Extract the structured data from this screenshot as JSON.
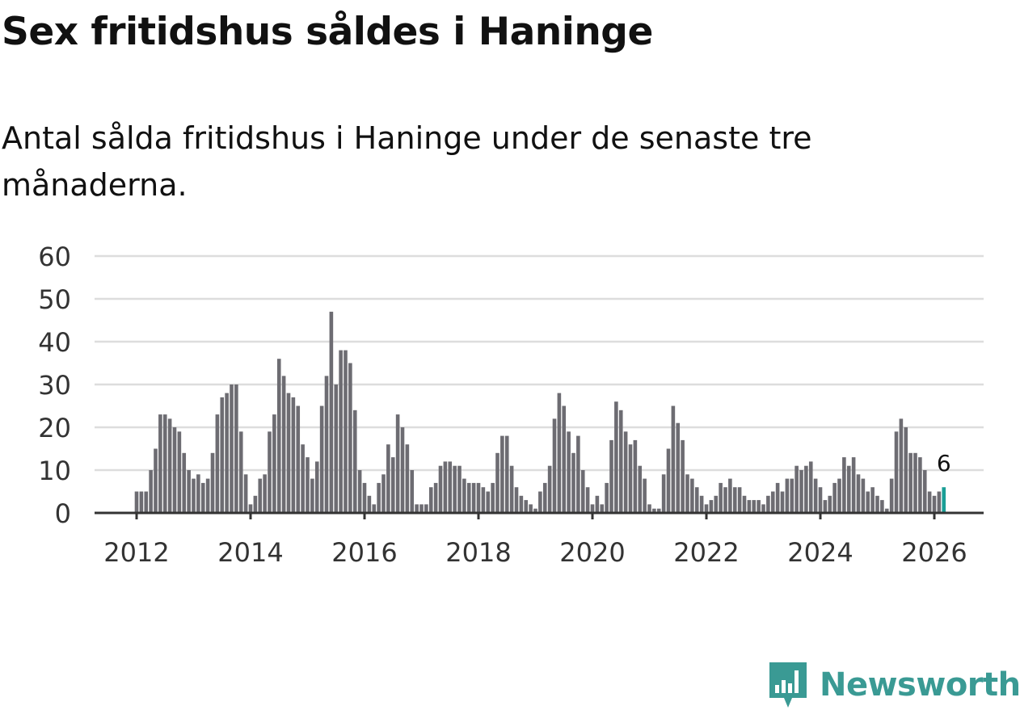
{
  "title": "Sex fritidshus såldes i Haninge",
  "subtitle": "Antal sålda fritidshus i Haninge under de senaste tre månaderna.",
  "brand": "Newsworthy",
  "colors": {
    "bar": "#6d6c72",
    "highlight": "#1a9e96",
    "grid": "#dddddd",
    "axis": "#333333",
    "brand": "#3a9a94"
  },
  "chart_data": {
    "type": "bar",
    "title": "Sex fritidshus såldes i Haninge",
    "xlabel": "",
    "ylabel": "",
    "ylim": [
      0,
      60
    ],
    "yticks": [
      0,
      10,
      20,
      30,
      40,
      50,
      60
    ],
    "xticks": [
      "2012",
      "2014",
      "2016",
      "2018",
      "2020",
      "2022",
      "2024",
      "2026"
    ],
    "start": "2012-01",
    "frequency": "monthly",
    "grid": true,
    "highlight_label": "6",
    "values": [
      5,
      5,
      5,
      10,
      15,
      23,
      23,
      22,
      20,
      19,
      14,
      10,
      8,
      9,
      7,
      8,
      14,
      23,
      27,
      28,
      30,
      30,
      19,
      9,
      2,
      4,
      8,
      9,
      19,
      23,
      36,
      32,
      28,
      27,
      25,
      16,
      13,
      8,
      12,
      25,
      32,
      47,
      30,
      38,
      38,
      35,
      24,
      10,
      7,
      4,
      2,
      7,
      9,
      16,
      13,
      23,
      20,
      16,
      10,
      2,
      2,
      2,
      6,
      7,
      11,
      12,
      12,
      11,
      11,
      8,
      7,
      7,
      7,
      6,
      5,
      7,
      14,
      18,
      18,
      11,
      6,
      4,
      3,
      2,
      1,
      5,
      7,
      11,
      22,
      28,
      25,
      19,
      14,
      18,
      10,
      6,
      2,
      4,
      2,
      7,
      17,
      26,
      24,
      19,
      16,
      17,
      11,
      8,
      2,
      1,
      1,
      9,
      15,
      25,
      21,
      17,
      9,
      8,
      6,
      4,
      2,
      3,
      4,
      7,
      6,
      8,
      6,
      6,
      4,
      3,
      3,
      3,
      2,
      4,
      5,
      7,
      5,
      8,
      8,
      11,
      10,
      11,
      12,
      8,
      6,
      3,
      4,
      7,
      8,
      13,
      11,
      13,
      9,
      8,
      5,
      6,
      4,
      3,
      1,
      8,
      19,
      22,
      20,
      14,
      14,
      13,
      10,
      5,
      4,
      5,
      6
    ]
  }
}
